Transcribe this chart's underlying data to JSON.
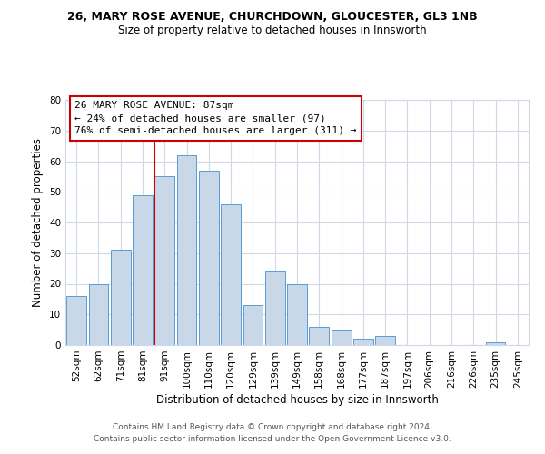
{
  "title_line1": "26, MARY ROSE AVENUE, CHURCHDOWN, GLOUCESTER, GL3 1NB",
  "title_line2": "Size of property relative to detached houses in Innsworth",
  "xlabel": "Distribution of detached houses by size in Innsworth",
  "ylabel": "Number of detached properties",
  "categories": [
    "52sqm",
    "62sqm",
    "71sqm",
    "81sqm",
    "91sqm",
    "100sqm",
    "110sqm",
    "120sqm",
    "129sqm",
    "139sqm",
    "149sqm",
    "158sqm",
    "168sqm",
    "177sqm",
    "187sqm",
    "197sqm",
    "206sqm",
    "216sqm",
    "226sqm",
    "235sqm",
    "245sqm"
  ],
  "values": [
    16,
    20,
    31,
    49,
    55,
    62,
    57,
    46,
    13,
    24,
    20,
    6,
    5,
    2,
    3,
    0,
    0,
    0,
    0,
    1,
    0
  ],
  "bar_color": "#c8d8e8",
  "bar_edge_color": "#5b9bd5",
  "vline_color": "#cc0000",
  "annotation_title": "26 MARY ROSE AVENUE: 87sqm",
  "annotation_line1": "← 24% of detached houses are smaller (97)",
  "annotation_line2": "76% of semi-detached houses are larger (311) →",
  "annotation_box_color": "#ffffff",
  "annotation_box_edge": "#cc0000",
  "ylim": [
    0,
    80
  ],
  "yticks": [
    0,
    10,
    20,
    30,
    40,
    50,
    60,
    70,
    80
  ],
  "footer_line1": "Contains HM Land Registry data © Crown copyright and database right 2024.",
  "footer_line2": "Contains public sector information licensed under the Open Government Licence v3.0.",
  "background_color": "#ffffff",
  "grid_color": "#d0d8e8",
  "title1_fontsize": 9.0,
  "title2_fontsize": 8.5,
  "annotation_fontsize": 8.0,
  "xlabel_fontsize": 8.5,
  "ylabel_fontsize": 8.5,
  "tick_fontsize": 7.5,
  "footer_fontsize": 6.5
}
